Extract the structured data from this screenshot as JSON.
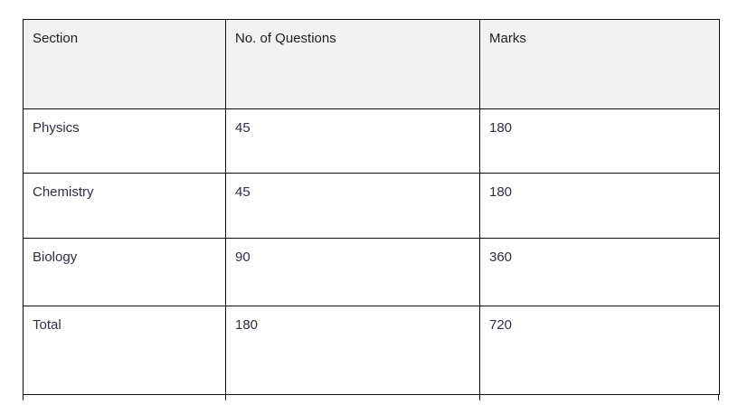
{
  "table": {
    "headers": {
      "section": "Section",
      "questions": "No. of Questions",
      "marks": "Marks"
    },
    "rows": [
      {
        "section": "Physics",
        "questions": "45",
        "marks": "180"
      },
      {
        "section": "Chemistry",
        "questions": "45",
        "marks": "180"
      },
      {
        "section": "Biology",
        "questions": "90",
        "marks": "360"
      },
      {
        "section": "Total",
        "questions": "180",
        "marks": "720"
      }
    ],
    "colors": {
      "header_bg": "#f2f2f3",
      "header_text": "#1e1e1e",
      "body_text": "#2e2e49",
      "border": "#0d0d0d",
      "page_bg": "#ffffff"
    }
  },
  "chart_data": {
    "type": "table",
    "columns": [
      "Section",
      "No. of Questions",
      "Marks"
    ],
    "rows": [
      [
        "Physics",
        45,
        180
      ],
      [
        "Chemistry",
        45,
        180
      ],
      [
        "Biology",
        90,
        360
      ],
      [
        "Total",
        180,
        720
      ]
    ]
  }
}
